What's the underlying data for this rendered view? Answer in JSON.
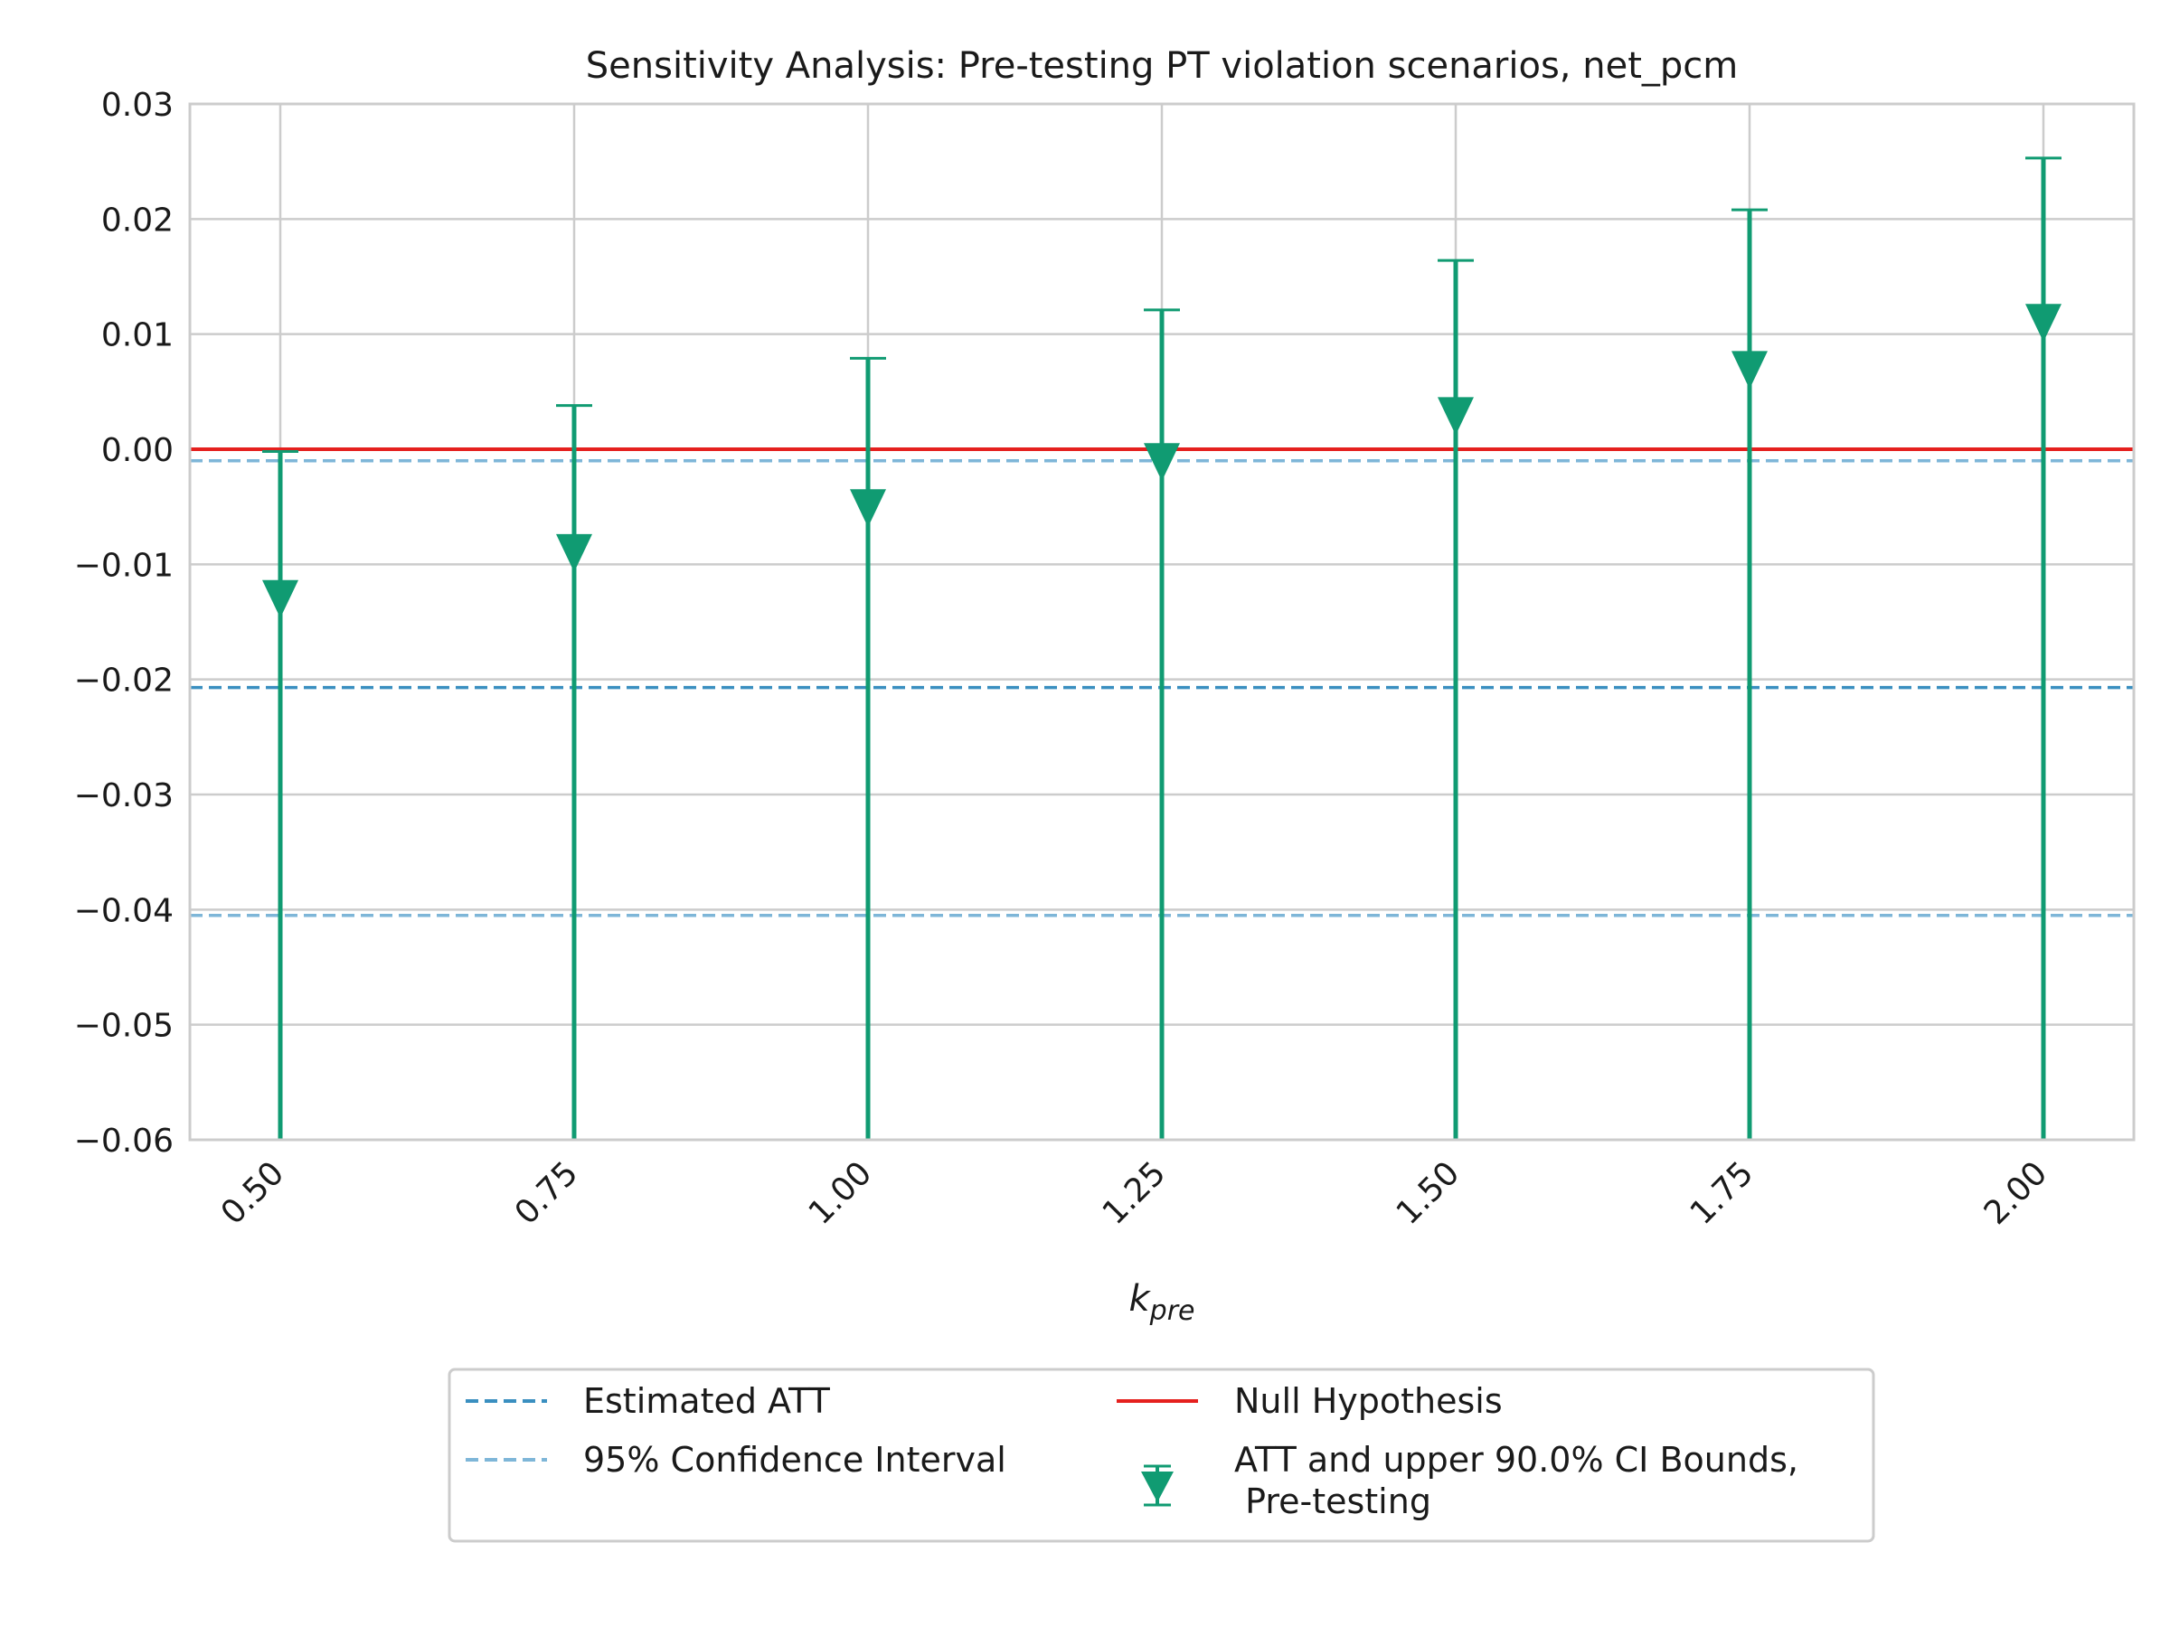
{
  "chart_data": {
    "type": "errorbar",
    "title": "Sensitivity Analysis: Pre-testing PT violation scenarios, net_pcm",
    "xlabel_base": "k",
    "xlabel_sub": "pre",
    "ylabel": "",
    "categories": [
      "0.50",
      "0.75",
      "1.00",
      "1.25",
      "1.50",
      "1.75",
      "2.00"
    ],
    "x": [
      0.5,
      0.75,
      1.0,
      1.25,
      1.5,
      1.75,
      2.0
    ],
    "ylim": [
      -0.06,
      0.03
    ],
    "yticks": [
      0.03,
      0.02,
      0.01,
      0.0,
      -0.01,
      -0.02,
      -0.03,
      -0.04,
      -0.05,
      -0.06
    ],
    "ytick_labels": [
      "0.03",
      "0.02",
      "0.01",
      "0.00",
      "−0.01",
      "−0.02",
      "−0.03",
      "−0.04",
      "−0.05",
      "−0.06"
    ],
    "grid": true,
    "series": [
      {
        "name": "ATT and upper 90.0% CI Bounds,\n Pre-testing",
        "att": [
          -0.0131,
          -0.0091,
          -0.0052,
          -0.0012,
          0.0028,
          0.0068,
          0.0109
        ],
        "upper": [
          -0.0002,
          0.0038,
          0.0079,
          0.0121,
          0.0164,
          0.0208,
          0.0253
        ],
        "marker": "triangle-down",
        "color": "#109b72"
      }
    ],
    "hlines": [
      {
        "name": "Estimated ATT",
        "y": -0.0207,
        "style": "dashed",
        "color": "#3a8fc0"
      },
      {
        "name": "95% Confidence Interval",
        "y": -0.001,
        "style": "dashed",
        "color": "#7eb6d8"
      },
      {
        "name": "95% Confidence Interval",
        "y": -0.0405,
        "style": "dashed",
        "color": "#7eb6d8"
      },
      {
        "name": "Null Hypothesis",
        "y": 0.0,
        "style": "solid",
        "color": "#e5201e"
      }
    ],
    "legend": {
      "placement": "bottom-center",
      "entries": [
        {
          "label": "Estimated ATT",
          "kind": "dashed",
          "color": "#3a8fc0"
        },
        {
          "label": "95% Confidence Interval",
          "kind": "dashed",
          "color": "#7eb6d8"
        },
        {
          "label": "Null Hypothesis",
          "kind": "solid",
          "color": "#e5201e"
        },
        {
          "label_lines": [
            "ATT and upper 90.0% CI Bounds,",
            " Pre-testing"
          ],
          "kind": "errorbar-marker",
          "color": "#109b72"
        }
      ]
    }
  }
}
